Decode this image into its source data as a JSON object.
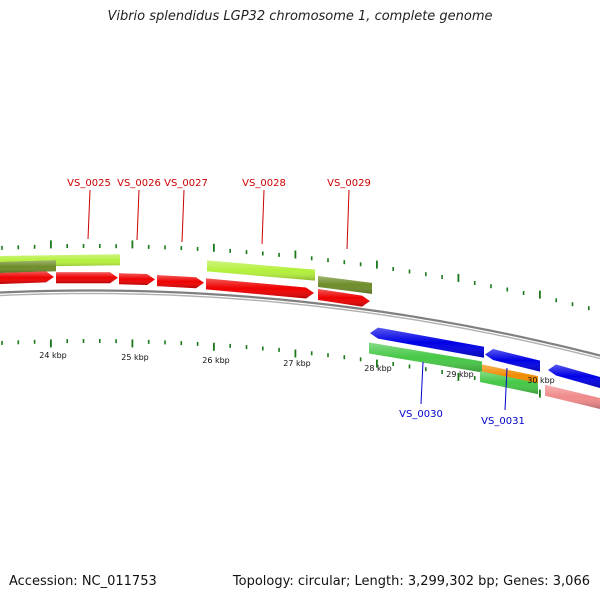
{
  "title": "Vibrio splendidus LGP32 chromosome 1, complete genome",
  "accession_label": "Accession: NC_011753",
  "stats_label": "Topology: circular; Length: 3,299,302 bp; Genes: 3,066",
  "colors": {
    "forward_cds": "#ee0000",
    "forward_gene_light": "#b4f03c",
    "forward_gene_dark": "#6e8c28",
    "reverse_cds": "#0000e6",
    "reverse_gene": "#46c846",
    "rna_gene": "#f08c00",
    "reverse_pseudo": "#f08a8a",
    "tick": "#1a7a1a",
    "backbone": "#808080",
    "forward_label": "#cc0000",
    "reverse_label": "#0000cc"
  },
  "scale_labels": [
    "24 kbp",
    "25 kbp",
    "26 kbp",
    "27 kbp",
    "28 kbp",
    "29 kbp",
    "30 kbp"
  ],
  "forward_genes": [
    "VS_0025",
    "VS_0026",
    "VS_0027",
    "VS_0028",
    "VS_0029"
  ],
  "reverse_genes": [
    "VS_0030",
    "VS_0031"
  ]
}
